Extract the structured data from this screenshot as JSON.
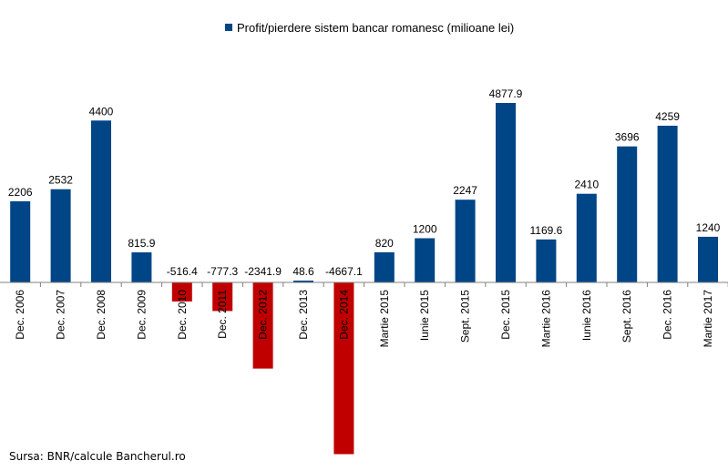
{
  "legend": {
    "label": "Profit/pierdere sistem bancar romanesc (milioane lei)"
  },
  "source": "Sursa: BNR/calcule Bancherul.ro",
  "colors": {
    "positive": "#004586",
    "negative": "#c00000",
    "axis": "#808080",
    "text": "#000000"
  },
  "chart_data": {
    "type": "bar",
    "title": "",
    "xlabel": "",
    "ylabel": "",
    "categories": [
      "Dec. 2006",
      "Dec. 2007",
      "Dec. 2008",
      "Dec. 2009",
      "Dec. 2010",
      "Dec. 2011",
      "Dec. 2012",
      "Dec. 2013",
      "Dec. 2014",
      "Martie 2015",
      "Iunie 2015",
      "Sept. 2015",
      "Dec. 2015",
      "Martie 2016",
      "Iunie 2016",
      "Sept. 2016",
      "Dec. 2016",
      "Martie 2017"
    ],
    "series": [
      {
        "name": "Profit/pierdere sistem bancar romanesc (milioane lei)",
        "values": [
          2206,
          2532,
          4400,
          815.9,
          -516.4,
          -777.3,
          -2341.9,
          48.6,
          -4667.1,
          820,
          1200,
          2247,
          4877.9,
          1169.6,
          2410,
          3696,
          4259,
          1240
        ]
      }
    ],
    "labels": [
      "2206",
      "2532",
      "4400",
      "815.9",
      "-516.4",
      "-777.3",
      "-2341.9",
      "48.6",
      "-4667.1",
      "820",
      "1200",
      "2247",
      "4877.9",
      "1169.6",
      "2410",
      "3696",
      "4259",
      "1240"
    ],
    "ylim": [
      -4667.1,
      4877.9
    ],
    "grid": false,
    "legend_position": "top"
  }
}
